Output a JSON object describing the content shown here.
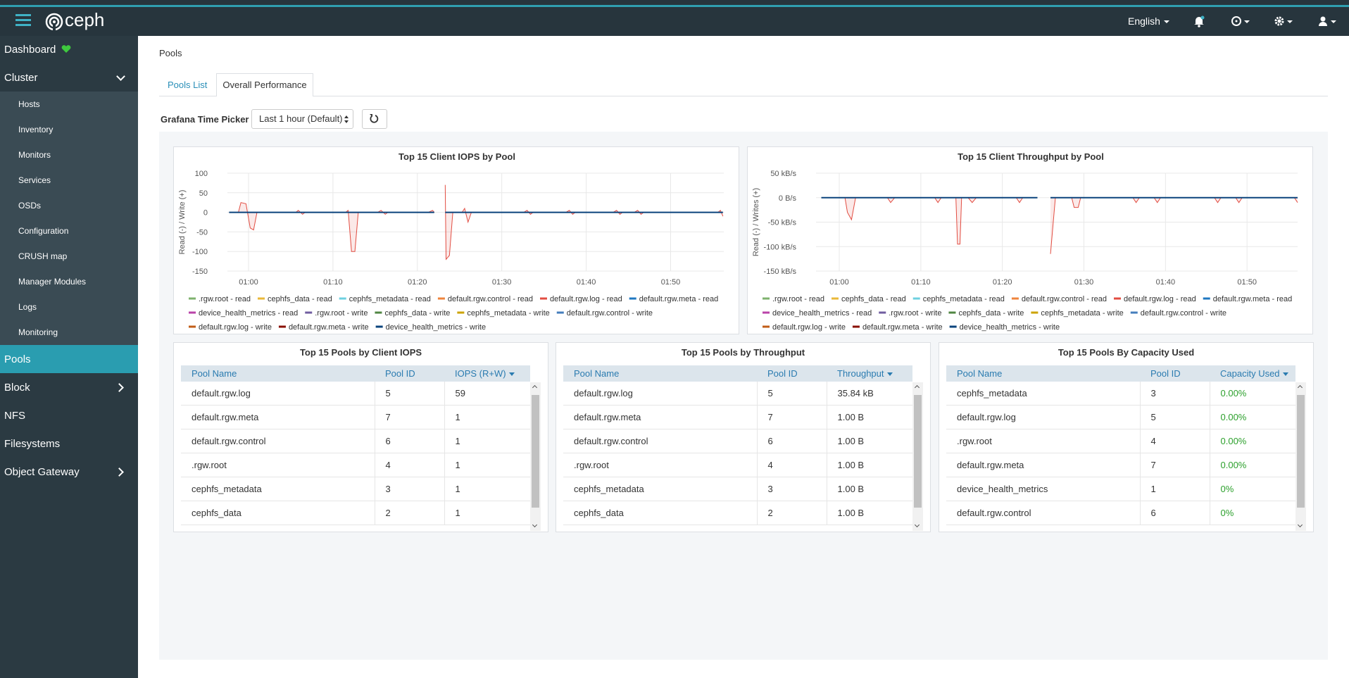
{
  "navbar": {
    "brand": "ceph",
    "language": "English"
  },
  "sidebar": [
    {
      "label": "Dashboard"
    },
    {
      "label": "Cluster",
      "children": [
        "Hosts",
        "Inventory",
        "Monitors",
        "Services",
        "OSDs",
        "Configuration",
        "CRUSH map",
        "Manager Modules",
        "Logs",
        "Monitoring"
      ]
    },
    {
      "label": "Pools",
      "active": true
    },
    {
      "label": "Block",
      "submenu": true
    },
    {
      "label": "NFS"
    },
    {
      "label": "Filesystems"
    },
    {
      "label": "Object Gateway",
      "submenu": true
    }
  ],
  "breadcrumb": "Pools",
  "tabs": [
    "Pools List",
    "Overall Performance"
  ],
  "time_picker": {
    "label": "Grafana Time Picker",
    "selected": "Last 1 hour (Default)"
  },
  "charts": [
    {
      "type": "line",
      "title": "Top 15 Client IOPS by Pool",
      "y_label": "Read (-) / Write (+)",
      "grid": true,
      "x": [
        57.7,
        58.8,
        59.1,
        59.7,
        60.2,
        60.6,
        61.0,
        65.6,
        65.9,
        66.4,
        66.7,
        71.5,
        71.8,
        72.2,
        72.6,
        73.0,
        75.3,
        75.7,
        76.2,
        76.5,
        81.3,
        81.8,
        82.0,
        82.6,
        83.3,
        83.4,
        83.8,
        84.2,
        85.3,
        85.6,
        86.0,
        86.4,
        92.6,
        93.0,
        93.4,
        93.7,
        97.6,
        98.0,
        98.4,
        98.7,
        103.2,
        103.6,
        104.0,
        104.3,
        105.7,
        106.1,
        106.5,
        106.8,
        115.6,
        115.9,
        116.2
      ],
      "xlim": [
        57.5,
        116.3
      ],
      "xticks": [
        {
          "value": 60,
          "label": "01:00"
        },
        {
          "value": 70,
          "label": "01:10"
        },
        {
          "value": 80,
          "label": "01:20"
        },
        {
          "value": 90,
          "label": "01:30"
        },
        {
          "value": 100,
          "label": "01:40"
        },
        {
          "value": 110,
          "label": "01:50"
        }
      ],
      "ylim": [
        -150,
        100
      ],
      "yticks": [
        100,
        50,
        0,
        -50,
        -100,
        -150
      ],
      "series": [
        {
          "name": ".rgw.root - read",
          "color": "#7eb26d"
        },
        {
          "name": "cephfs_data - read",
          "color": "#eab839"
        },
        {
          "name": "cephfs_metadata - read",
          "color": "#6ed0e0"
        },
        {
          "name": "default.rgw.control - read",
          "color": "#ef843c"
        },
        {
          "name": "default.rgw.log - read",
          "color": "#e24d42",
          "values": [
            0,
            0,
            25,
            22,
            -40,
            -45,
            0,
            0,
            5,
            -5,
            0,
            0,
            5,
            -100,
            -100,
            0,
            0,
            5,
            -5,
            0,
            0,
            5,
            0,
            null,
            70,
            -120,
            -110,
            0,
            0,
            10,
            -25,
            0,
            0,
            5,
            -5,
            0,
            0,
            5,
            -5,
            0,
            0,
            5,
            -5,
            0,
            0,
            5,
            -5,
            0,
            0,
            5,
            -10
          ]
        },
        {
          "name": "default.rgw.meta - read",
          "color": "#1f78c1"
        },
        {
          "name": "device_health_metrics - read",
          "color": "#ba43a9"
        },
        {
          "name": ".rgw.root - write",
          "color": "#705da0"
        },
        {
          "name": "cephfs_data - write",
          "color": "#508642"
        },
        {
          "name": "cephfs_metadata - write",
          "color": "#cca300"
        },
        {
          "name": "default.rgw.control - write",
          "color": "#447ebc"
        },
        {
          "name": "default.rgw.log - write",
          "color": "#c15c17"
        },
        {
          "name": "default.rgw.meta - write",
          "color": "#890f02"
        },
        {
          "name": "device_health_metrics - write",
          "color": "#0a437c",
          "values": [
            0,
            0,
            0,
            0,
            0,
            0,
            0,
            0,
            0,
            0,
            0,
            0,
            0,
            0,
            0,
            0,
            0,
            0,
            0,
            0,
            0,
            0,
            0,
            null,
            0,
            0,
            0,
            0,
            0,
            0,
            0,
            0,
            0,
            0,
            0,
            0,
            0,
            0,
            0,
            0,
            0,
            0,
            0,
            0,
            0,
            0,
            0,
            0,
            0,
            0,
            0
          ]
        }
      ]
    },
    {
      "type": "line",
      "title": "Top 15 Client Throughput by Pool",
      "y_label": "Read (-) / Writes (+)",
      "grid": true,
      "x": [
        57.8,
        60.7,
        61.0,
        61.5,
        62.0,
        65.9,
        66.3,
        66.8,
        71.7,
        72.1,
        72.5,
        74.3,
        74.5,
        74.8,
        75.0,
        75.8,
        76.3,
        76.8,
        81.7,
        82.1,
        82.5,
        84.3,
        85.0,
        85.9,
        86.5,
        88.5,
        88.8,
        89.3,
        89.6,
        96.0,
        96.4,
        96.8,
        98.6,
        99.0,
        99.4,
        106.0,
        106.4,
        106.8,
        108.6,
        109.0,
        109.4,
        115.8,
        116.2
      ],
      "xlim": [
        57.15,
        116.2
      ],
      "xticks": [
        {
          "value": 60,
          "label": "01:00"
        },
        {
          "value": 70,
          "label": "01:10"
        },
        {
          "value": 80,
          "label": "01:20"
        },
        {
          "value": 90,
          "label": "01:30"
        },
        {
          "value": 100,
          "label": "01:40"
        },
        {
          "value": 110,
          "label": "01:50"
        }
      ],
      "ylim": [
        -150,
        50
      ],
      "yticks": [
        {
          "value": 50,
          "label": "50 kB/s"
        },
        {
          "value": 0,
          "label": "0 B/s"
        },
        {
          "value": -50,
          "label": "-50 kB/s"
        },
        {
          "value": -100,
          "label": "-100 kB/s"
        },
        {
          "value": -150,
          "label": "-150 kB/s"
        }
      ],
      "series": [
        {
          "name": ".rgw.root - read",
          "color": "#7eb26d"
        },
        {
          "name": "cephfs_data - read",
          "color": "#eab839"
        },
        {
          "name": "cephfs_metadata - read",
          "color": "#6ed0e0"
        },
        {
          "name": "default.rgw.control - read",
          "color": "#ef843c"
        },
        {
          "name": "default.rgw.log - read",
          "color": "#e24d42",
          "values": [
            0,
            0,
            -30,
            -45,
            0,
            0,
            -10,
            0,
            0,
            -10,
            0,
            0,
            -95,
            -95,
            0,
            0,
            -10,
            0,
            0,
            -10,
            0,
            0,
            null,
            -115,
            0,
            0,
            -20,
            -20,
            0,
            0,
            -10,
            0,
            0,
            -10,
            0,
            0,
            -10,
            0,
            0,
            -10,
            0,
            0,
            -10
          ]
        },
        {
          "name": "default.rgw.meta - read",
          "color": "#1f78c1"
        },
        {
          "name": "device_health_metrics - read",
          "color": "#ba43a9"
        },
        {
          "name": ".rgw.root - write",
          "color": "#705da0"
        },
        {
          "name": "cephfs_data - write",
          "color": "#508642"
        },
        {
          "name": "cephfs_metadata - write",
          "color": "#cca300"
        },
        {
          "name": "default.rgw.control - write",
          "color": "#447ebc"
        },
        {
          "name": "default.rgw.log - write",
          "color": "#c15c17"
        },
        {
          "name": "default.rgw.meta - write",
          "color": "#890f02"
        },
        {
          "name": "device_health_metrics - write",
          "color": "#0a437c",
          "values": [
            0,
            0,
            0,
            0,
            0,
            0,
            0,
            0,
            0,
            0,
            0,
            0,
            0,
            0,
            0,
            0,
            0,
            0,
            0,
            0,
            0,
            0,
            null,
            0,
            0,
            0,
            0,
            0,
            0,
            0,
            0,
            0,
            0,
            0,
            0,
            0,
            0,
            0,
            0,
            0,
            0,
            0,
            0
          ]
        }
      ]
    }
  ],
  "tables": [
    {
      "title": "Top 15 Pools by Client IOPS",
      "columns": [
        "Pool Name",
        "Pool ID",
        "IOPS (R+W)"
      ],
      "rows": [
        [
          "default.rgw.log",
          5,
          59
        ],
        [
          "default.rgw.meta",
          7,
          1
        ],
        [
          "default.rgw.control",
          6,
          1
        ],
        [
          ".rgw.root",
          4,
          1
        ],
        [
          "cephfs_metadata",
          3,
          1
        ],
        [
          "cephfs_data",
          2,
          1
        ]
      ]
    },
    {
      "title": "Top 15 Pools by Throughput",
      "columns": [
        "Pool Name",
        "Pool ID",
        "Throughput"
      ],
      "rows": [
        [
          "default.rgw.log",
          5,
          "35.84 kB"
        ],
        [
          "default.rgw.meta",
          7,
          "1.00 B"
        ],
        [
          "default.rgw.control",
          6,
          "1.00 B"
        ],
        [
          ".rgw.root",
          4,
          "1.00 B"
        ],
        [
          "cephfs_metadata",
          3,
          "1.00 B"
        ],
        [
          "cephfs_data",
          2,
          "1.00 B"
        ]
      ]
    },
    {
      "title": "Top 15 Pools By Capacity Used",
      "columns": [
        "Pool Name",
        "Pool ID",
        "Capacity Used"
      ],
      "rows": [
        [
          "cephfs_metadata",
          3,
          "0.00%"
        ],
        [
          "default.rgw.log",
          5,
          "0.00%"
        ],
        [
          ".rgw.root",
          4,
          "0.00%"
        ],
        [
          "default.rgw.meta",
          7,
          "0.00%"
        ],
        [
          "device_health_metrics",
          1,
          "0%"
        ],
        [
          "default.rgw.control",
          6,
          "0%"
        ]
      ]
    }
  ]
}
